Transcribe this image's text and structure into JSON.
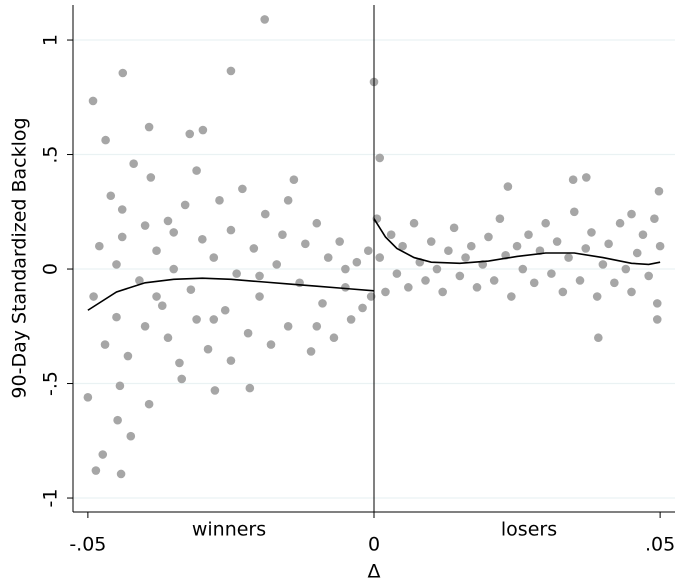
{
  "chart_data": {
    "type": "scatter",
    "xlabel": "Δ",
    "ylabel": "90-Day Standardized Backlog",
    "annotations": [
      "winners",
      "losers"
    ],
    "xlim": [
      -0.0526,
      0.0526
    ],
    "ylim": [
      -1.061,
      1.153
    ],
    "xticks": [
      {
        "value": -0.05,
        "label": "-.05"
      },
      0,
      {
        "value": 0.05,
        "label": ".05"
      }
    ],
    "yticks": [
      -1,
      {
        "value": -0.5,
        "label": "-.5"
      },
      0,
      {
        "value": 0.5,
        "label": ".5"
      },
      1
    ],
    "grid": true,
    "vline": 0,
    "point_color": "#a6a6a6",
    "x": [
      -0.0191,
      -0.025,
      -0.0439,
      -0.0491,
      0.0,
      -0.0469,
      -0.0393,
      -0.0299,
      -0.0322,
      -0.05,
      -0.0486,
      -0.0474,
      -0.0442,
      -0.0425,
      -0.0448,
      -0.0444,
      -0.0393,
      -0.0217,
      -0.0278,
      -0.0336,
      0.0392,
      0.001,
      0.0348,
      0.0371,
      0.0234,
      -0.049,
      -0.048,
      -0.047,
      -0.046,
      -0.045,
      -0.045,
      -0.044,
      -0.043,
      -0.042,
      -0.041,
      -0.04,
      -0.04,
      -0.039,
      -0.038,
      -0.037,
      -0.036,
      -0.036,
      -0.035,
      -0.034,
      -0.033,
      -0.032,
      -0.031,
      -0.031,
      -0.03,
      -0.029,
      -0.028,
      -0.027,
      -0.026,
      -0.025,
      -0.025,
      -0.024,
      -0.023,
      -0.022,
      -0.021,
      -0.02,
      -0.019,
      -0.018,
      -0.017,
      -0.016,
      -0.015,
      -0.014,
      -0.013,
      -0.012,
      -0.011,
      -0.01,
      -0.009,
      -0.008,
      -0.007,
      -0.006,
      -0.005,
      -0.004,
      -0.003,
      -0.002,
      -0.001,
      -0.0005,
      -0.015,
      -0.028,
      -0.038,
      -0.044,
      -0.035,
      -0.02,
      -0.01,
      -0.005,
      0.0005,
      0.001,
      0.002,
      0.003,
      0.004,
      0.005,
      0.006,
      0.007,
      0.008,
      0.009,
      0.01,
      0.011,
      0.012,
      0.013,
      0.014,
      0.015,
      0.016,
      0.017,
      0.018,
      0.019,
      0.02,
      0.021,
      0.022,
      0.023,
      0.024,
      0.025,
      0.026,
      0.027,
      0.028,
      0.029,
      0.03,
      0.031,
      0.032,
      0.033,
      0.034,
      0.035,
      0.036,
      0.037,
      0.038,
      0.039,
      0.04,
      0.041,
      0.042,
      0.043,
      0.044,
      0.045,
      0.046,
      0.047,
      0.048,
      0.049,
      0.0495,
      0.05,
      0.0498,
      0.0495,
      0.045
    ],
    "y": [
      1.09,
      0.865,
      0.856,
      0.734,
      0.817,
      0.563,
      0.62,
      0.607,
      0.59,
      -0.56,
      -0.88,
      -0.81,
      -0.895,
      -0.73,
      -0.66,
      -0.51,
      -0.59,
      -0.52,
      -0.53,
      -0.48,
      -0.3,
      0.485,
      0.39,
      0.4,
      0.36,
      -0.12,
      0.1,
      -0.33,
      0.32,
      0.02,
      -0.21,
      0.14,
      -0.38,
      0.46,
      -0.05,
      0.19,
      -0.25,
      0.4,
      0.08,
      -0.16,
      -0.3,
      0.21,
      0.0,
      -0.41,
      0.28,
      -0.09,
      0.43,
      -0.22,
      0.13,
      -0.35,
      0.05,
      0.3,
      -0.18,
      -0.4,
      0.17,
      -0.02,
      0.35,
      -0.28,
      0.09,
      -0.12,
      0.24,
      -0.33,
      0.02,
      0.15,
      -0.25,
      0.39,
      -0.06,
      0.11,
      -0.36,
      0.2,
      -0.15,
      0.05,
      -0.3,
      0.12,
      -0.08,
      -0.22,
      0.03,
      -0.17,
      0.08,
      -0.12,
      0.3,
      -0.22,
      -0.12,
      0.26,
      0.16,
      -0.03,
      -0.25,
      0.0,
      0.22,
      0.05,
      -0.1,
      0.15,
      -0.02,
      0.1,
      -0.08,
      0.2,
      0.03,
      -0.05,
      0.12,
      0.0,
      -0.1,
      0.08,
      0.18,
      -0.03,
      0.05,
      0.1,
      -0.08,
      0.02,
      0.14,
      -0.05,
      0.22,
      0.06,
      -0.12,
      0.1,
      0.0,
      0.15,
      -0.06,
      0.08,
      0.2,
      -0.02,
      0.12,
      -0.1,
      0.05,
      0.25,
      -0.05,
      0.09,
      0.16,
      -0.12,
      0.02,
      0.11,
      -0.06,
      0.2,
      0.0,
      -0.1,
      0.07,
      0.15,
      -0.03,
      0.22,
      -0.15,
      0.1,
      0.34,
      -0.22,
      0.24
    ],
    "fit_color": "#000000",
    "fits": [
      {
        "x": [
          -0.05,
          -0.045,
          -0.04,
          -0.035,
          -0.03,
          -0.025,
          -0.02,
          -0.015,
          -0.01,
          -0.005,
          0
        ],
        "y": [
          -0.18,
          -0.1,
          -0.06,
          -0.045,
          -0.04,
          -0.045,
          -0.055,
          -0.065,
          -0.075,
          -0.085,
          -0.095
        ]
      },
      {
        "x": [
          0,
          0.002,
          0.004,
          0.007,
          0.01,
          0.015,
          0.02,
          0.025,
          0.03,
          0.035,
          0.04,
          0.045,
          0.048,
          0.05
        ],
        "y": [
          0.22,
          0.14,
          0.09,
          0.05,
          0.03,
          0.025,
          0.035,
          0.055,
          0.07,
          0.07,
          0.05,
          0.025,
          0.02,
          0.03
        ]
      }
    ]
  }
}
